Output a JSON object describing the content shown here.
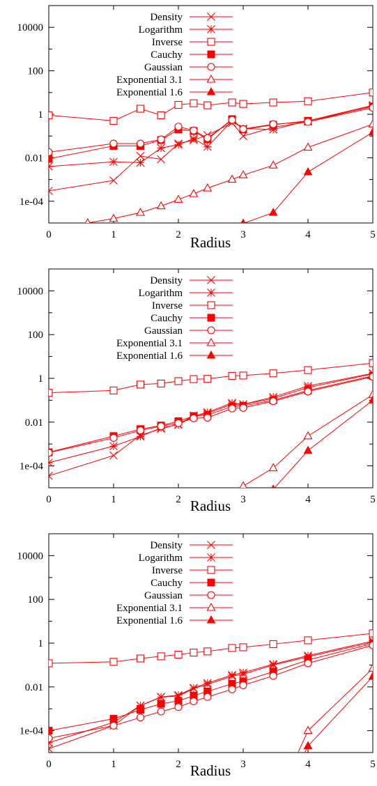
{
  "chart_data": [
    {
      "type": "line",
      "xlabel": "Radius",
      "ylabel": "",
      "xlim": [
        0,
        5
      ],
      "ylim_log10": [
        -5,
        5
      ],
      "yscale": "log",
      "x_ticks": [
        "0",
        "1",
        "2",
        "3",
        "4",
        "5"
      ],
      "y_ticks": [
        "1e-04",
        "0.01",
        "1",
        "100",
        "10000"
      ],
      "y_tick_values": [
        0.0001,
        0.01,
        1,
        100,
        10000
      ],
      "legend_position": "top-center",
      "series": [
        {
          "name": "Density",
          "marker": "x",
          "x": [
            0,
            1,
            1.414,
            1.732,
            2,
            2.236,
            2.449,
            2.828,
            3,
            3.464,
            4,
            5
          ],
          "y": [
            0.0003,
            0.0009,
            0.012,
            0.0085,
            0.045,
            0.065,
            0.11,
            0.4,
            0.1,
            0.25,
            0.45,
            2.4
          ]
        },
        {
          "name": "Logarithm",
          "marker": "star",
          "x": [
            0,
            1,
            1.414,
            1.732,
            2,
            2.236,
            2.449,
            2.828,
            3,
            3.464,
            4,
            5
          ],
          "y": [
            0.004,
            0.0065,
            0.006,
            0.028,
            0.04,
            0.075,
            0.032,
            0.5,
            0.22,
            0.2,
            0.5,
            2.6
          ]
        },
        {
          "name": "Inverse",
          "marker": "square-open",
          "x": [
            0,
            1,
            1.414,
            1.732,
            2,
            2.236,
            2.449,
            2.828,
            3,
            3.464,
            4,
            5
          ],
          "y": [
            0.9,
            0.5,
            1.8,
            0.9,
            2.7,
            3.2,
            2.6,
            3.5,
            3.0,
            3.5,
            4.0,
            10.0
          ]
        },
        {
          "name": "Cauchy",
          "marker": "square-filled",
          "x": [
            0,
            1,
            1.414,
            1.732,
            2,
            2.236,
            2.449,
            2.828,
            3,
            3.464,
            4,
            5
          ],
          "y": [
            0.009,
            0.035,
            0.035,
            0.065,
            0.2,
            0.17,
            0.07,
            0.6,
            0.2,
            0.33,
            0.5,
            2.3
          ]
        },
        {
          "name": "Gaussian",
          "marker": "circle-open",
          "x": [
            0,
            1,
            1.414,
            1.732,
            2,
            2.236,
            2.449,
            2.828,
            3,
            3.464,
            4,
            5
          ],
          "y": [
            0.018,
            0.045,
            0.045,
            0.07,
            0.27,
            0.18,
            0.08,
            0.55,
            0.21,
            0.35,
            0.45,
            2.0
          ]
        },
        {
          "name": "Exponential 3.1",
          "marker": "triangle-open",
          "x": [
            0.6,
            1,
            1.414,
            1.732,
            2,
            2.236,
            2.449,
            2.828,
            3,
            3.464,
            4,
            5
          ],
          "y": [
            1e-05,
            1.6e-05,
            3e-05,
            6e-05,
            0.00012,
            0.00022,
            0.0004,
            0.001,
            0.0016,
            0.0045,
            0.03,
            0.35
          ]
        },
        {
          "name": "Exponential 1.6",
          "marker": "triangle-filled",
          "x": [
            3.0,
            3.464,
            4,
            5
          ],
          "y": [
            9.5e-06,
            3e-05,
            0.0022,
            0.15
          ]
        }
      ]
    },
    {
      "type": "line",
      "xlabel": "Radius",
      "ylabel": "",
      "xlim": [
        0,
        5
      ],
      "ylim_log10": [
        -5,
        5
      ],
      "yscale": "log",
      "x_ticks": [
        "0",
        "1",
        "2",
        "3",
        "4",
        "5"
      ],
      "y_ticks": [
        "1e-04",
        "0.01",
        "1",
        "100",
        "10000"
      ],
      "y_tick_values": [
        0.0001,
        0.01,
        1,
        100,
        10000
      ],
      "legend_position": "top-center",
      "series": [
        {
          "name": "Density",
          "marker": "x",
          "x": [
            0,
            1,
            1.414,
            1.732,
            2,
            2.236,
            2.449,
            2.828,
            3,
            3.464,
            4,
            5
          ],
          "y": [
            3.5e-05,
            0.0003,
            0.0025,
            0.005,
            0.008,
            0.02,
            0.025,
            0.065,
            0.065,
            0.12,
            0.38,
            1.6
          ]
        },
        {
          "name": "Logarithm",
          "marker": "star",
          "x": [
            0,
            1,
            1.414,
            1.732,
            2,
            2.236,
            2.449,
            2.828,
            3,
            3.464,
            4,
            5
          ],
          "y": [
            0.00014,
            0.0008,
            0.0022,
            0.0055,
            0.0075,
            0.019,
            0.028,
            0.075,
            0.065,
            0.14,
            0.45,
            1.7
          ]
        },
        {
          "name": "Inverse",
          "marker": "square-open",
          "x": [
            0,
            1,
            1.414,
            1.732,
            2,
            2.236,
            2.449,
            2.828,
            3,
            3.464,
            4,
            5
          ],
          "y": [
            0.22,
            0.28,
            0.52,
            0.58,
            0.75,
            0.92,
            0.95,
            1.3,
            1.35,
            1.7,
            2.4,
            5.0
          ]
        },
        {
          "name": "Cauchy",
          "marker": "square-filled",
          "x": [
            0,
            1,
            1.414,
            1.732,
            2,
            2.236,
            2.449,
            2.828,
            3,
            3.464,
            4,
            5
          ],
          "y": [
            0.00042,
            0.0023,
            0.0048,
            0.007,
            0.011,
            0.019,
            0.021,
            0.052,
            0.056,
            0.1,
            0.28,
            1.3
          ]
        },
        {
          "name": "Gaussian",
          "marker": "circle-open",
          "x": [
            0,
            1,
            1.414,
            1.732,
            2,
            2.236,
            2.449,
            2.828,
            3,
            3.464,
            4,
            5
          ],
          "y": [
            0.0004,
            0.0019,
            0.0042,
            0.0065,
            0.009,
            0.015,
            0.016,
            0.042,
            0.045,
            0.09,
            0.25,
            1.2
          ]
        },
        {
          "name": "Exponential 3.1",
          "marker": "triangle-open",
          "x": [
            3.0,
            3.464,
            4,
            5
          ],
          "y": [
            1.2e-05,
            8e-05,
            0.0023,
            0.18
          ]
        },
        {
          "name": "Exponential 1.6",
          "marker": "triangle-filled",
          "x": [
            3.464,
            4,
            5
          ],
          "y": [
            8.5e-06,
            0.0005,
            0.1
          ]
        }
      ]
    },
    {
      "type": "line",
      "xlabel": "Radius",
      "ylabel": "",
      "xlim": [
        0,
        5
      ],
      "ylim_log10": [
        -5,
        5
      ],
      "yscale": "log",
      "x_ticks": [
        "0",
        "1",
        "2",
        "3",
        "4",
        "5"
      ],
      "y_ticks": [
        "1e-04",
        "0.01",
        "1",
        "100",
        "10000"
      ],
      "y_tick_values": [
        0.0001,
        0.01,
        1,
        100,
        10000
      ],
      "legend_position": "top-center",
      "series": [
        {
          "name": "Density",
          "marker": "x",
          "x": [
            0,
            1,
            1.414,
            1.732,
            2,
            2.236,
            2.449,
            2.828,
            3,
            3.464,
            4,
            5
          ],
          "y": [
            1.5e-05,
            0.00017,
            0.0014,
            0.0034,
            0.0038,
            0.0085,
            0.013,
            0.031,
            0.038,
            0.1,
            0.24,
            1.1
          ]
        },
        {
          "name": "Logarithm",
          "marker": "star",
          "x": [
            0,
            1,
            1.414,
            1.732,
            2,
            2.236,
            2.449,
            2.828,
            3,
            3.464,
            4,
            5
          ],
          "y": [
            2.8e-05,
            0.00024,
            0.0014,
            0.0035,
            0.0042,
            0.009,
            0.015,
            0.035,
            0.045,
            0.11,
            0.27,
            1.25
          ]
        },
        {
          "name": "Inverse",
          "marker": "square-open",
          "x": [
            0,
            1,
            1.414,
            1.732,
            2,
            2.236,
            2.449,
            2.828,
            3,
            3.464,
            4,
            5
          ],
          "y": [
            0.12,
            0.14,
            0.2,
            0.25,
            0.3,
            0.37,
            0.42,
            0.6,
            0.65,
            0.9,
            1.35,
            2.8
          ]
        },
        {
          "name": "Cauchy",
          "marker": "square-filled",
          "x": [
            0,
            1,
            1.414,
            1.732,
            2,
            2.236,
            2.449,
            2.828,
            3,
            3.464,
            4,
            5
          ],
          "y": [
            0.0001,
            0.00035,
            0.0009,
            0.0017,
            0.0023,
            0.004,
            0.0062,
            0.014,
            0.018,
            0.05,
            0.17,
            0.95
          ]
        },
        {
          "name": "Gaussian",
          "marker": "circle-open",
          "x": [
            0,
            1,
            1.414,
            1.732,
            2,
            2.236,
            2.449,
            2.828,
            3,
            3.464,
            4,
            5
          ],
          "y": [
            4.5e-05,
            0.00017,
            0.0004,
            0.00075,
            0.0012,
            0.0022,
            0.0035,
            0.0078,
            0.012,
            0.032,
            0.12,
            0.8
          ]
        },
        {
          "name": "Exponential 3.1",
          "marker": "triangle-open",
          "x": [
            3.8,
            4,
            5
          ],
          "y": [
            5e-06,
            0.0001,
            0.07
          ]
        },
        {
          "name": "Exponential 1.6",
          "marker": "triangle-filled",
          "x": [
            3.9,
            4,
            5
          ],
          "y": [
            5e-06,
            2e-05,
            0.03
          ]
        }
      ]
    }
  ],
  "style": {
    "line_color": "#ff0000",
    "axis_color": "#000000"
  }
}
